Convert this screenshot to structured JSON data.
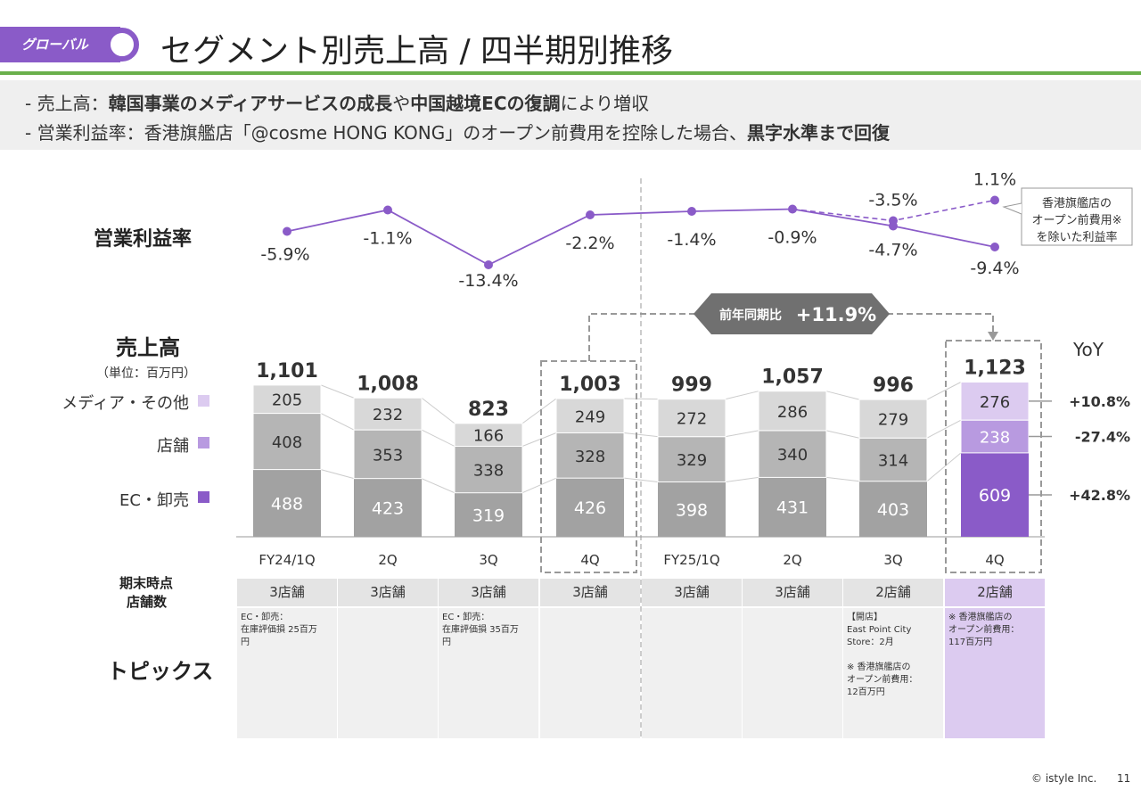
{
  "header": {
    "tag": "グローバル",
    "title": "セグメント別売上高 / 四半期別推移",
    "bullets": [
      {
        "prefix": "-  売上高：",
        "bold1": "韓国事業のメディアサービスの成長",
        "mid": "や",
        "bold2": "中国越境ECの復調",
        "suffix": "により増収"
      },
      {
        "prefix": "-  営業利益率：香港旗艦店「@cosme HONG KONG」のオープン前費用を控除した場合、",
        "bold1": "黒字水準まで回復",
        "mid": "",
        "bold2": "",
        "suffix": ""
      }
    ]
  },
  "labels": {
    "margin": "営業利益率",
    "sales": "売上高",
    "unit": "（単位：百万円）",
    "stores_line1": "期末時点",
    "stores_line2": "店舗数",
    "topics": "トピックス",
    "yoy": "YoY",
    "yoy_callout": "前年同期比",
    "yoy_callout_value": "+11.9%",
    "adjusted_note": "香港旗艦店の\nオープン前費用※\nを除いた利益率"
  },
  "legend": [
    {
      "name": "メディア・その他",
      "color": "#d9c6ee"
    },
    {
      "name": "店舗",
      "color": "#b89ae0"
    },
    {
      "name": "EC・卸売",
      "color": "#8a5bc8"
    }
  ],
  "colors": {
    "media_gray": "#d8d8d8",
    "store_gray": "#b5b5b5",
    "ec_gray": "#a2a2a2",
    "media_purple": "#dccbf0",
    "store_purple": "#b89ae0",
    "ec_purple": "#8a5bc8",
    "line": "#8a5bc8",
    "green": "#6ab04c"
  },
  "chart_data": [
    {
      "type": "bar",
      "stacked": true,
      "categories": [
        "FY24/1Q",
        "2Q",
        "3Q",
        "4Q",
        "FY25/1Q",
        "2Q",
        "3Q",
        "4Q"
      ],
      "series": [
        {
          "name": "EC・卸売",
          "values": [
            488,
            423,
            319,
            426,
            398,
            431,
            403,
            609
          ]
        },
        {
          "name": "店舗",
          "values": [
            408,
            353,
            338,
            328,
            329,
            340,
            314,
            238
          ]
        },
        {
          "name": "メディア・その他",
          "values": [
            205,
            232,
            166,
            249,
            272,
            286,
            279,
            276
          ]
        }
      ],
      "totals": [
        "1,101",
        "1,008",
        "823",
        "1,003",
        "999",
        "1,057",
        "996",
        "1,123"
      ],
      "yoy": [
        {
          "series": "メディア・その他",
          "value": "+10.8%"
        },
        {
          "series": "店舗",
          "value": "-27.4%"
        },
        {
          "series": "EC・卸売",
          "value": "+42.8%"
        }
      ]
    },
    {
      "type": "line",
      "categories": [
        "FY24/1Q",
        "2Q",
        "3Q",
        "4Q",
        "FY25/1Q",
        "2Q",
        "3Q",
        "4Q"
      ],
      "series": [
        {
          "values": [
            -5.9,
            -1.1,
            -13.4,
            -2.2,
            -1.4,
            -0.9,
            -4.7,
            -9.4
          ],
          "labels": [
            "-5.9%",
            "-1.1%",
            "-13.4%",
            "-2.2%",
            "-1.4%",
            "-0.9%",
            "-4.7%",
            "-9.4%"
          ]
        },
        {
          "name": "香港旗艦店のオープン前費用※を除いた利益率",
          "style": "dashed",
          "values": [
            null,
            null,
            null,
            null,
            null,
            -0.9,
            -3.5,
            1.1
          ],
          "labels": [
            "",
            "",
            "",
            "",
            "",
            "",
            "-3.5%",
            "1.1%"
          ]
        }
      ]
    }
  ],
  "stores": [
    "3店舗",
    "3店舗",
    "3店舗",
    "3店舗",
    "3店舗",
    "3店舗",
    "2店舗",
    "2店舗"
  ],
  "topics": [
    "EC・卸売：\n在庫評価損 25百万\n円",
    "",
    "EC・卸売：\n在庫評価損 35百万\n円",
    "",
    "",
    "",
    "【開店】\nEast Point City\nStore：2月\n\n※ 香港旗艦店の\nオープン前費用：\n12百万円",
    "※ 香港旗艦店の\nオープン前費用：\n117百万円"
  ],
  "footer": {
    "copyright": "© istyle Inc.",
    "page": "11"
  }
}
